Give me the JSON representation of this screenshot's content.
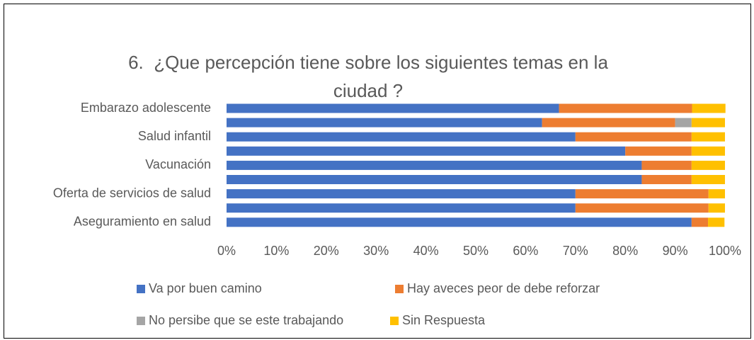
{
  "chart_data": {
    "type": "bar",
    "orientation": "horizontal",
    "stacked": "percent",
    "title": "6.  ¿Que percepción tiene sobre los siguientes temas en la ciudad ?",
    "categories": [
      "Embarazo adolescente",
      null,
      "Salud infantil",
      null,
      "Vacunación",
      null,
      "Oferta de servicios de salud",
      null,
      "Aseguramiento en salud"
    ],
    "series": [
      {
        "name": "Va por buen camino",
        "color": "#4472c4",
        "values": [
          66.7,
          63.3,
          70,
          80,
          83.3,
          83.3,
          70,
          70,
          93.3
        ]
      },
      {
        "name": "Hay aveces peor de debe reforzar",
        "color": "#ed7d31",
        "values": [
          26.7,
          26.7,
          23.3,
          13.3,
          10,
          10,
          26.7,
          26.7,
          3.3
        ]
      },
      {
        "name": "No persibe que se este trabajando",
        "color": "#a5a5a5",
        "values": [
          0,
          3.3,
          0,
          0,
          0,
          0,
          0,
          0,
          0
        ]
      },
      {
        "name": "Sin Respuesta",
        "color": "#ffc000",
        "values": [
          6.7,
          6.7,
          6.7,
          6.7,
          6.7,
          6.7,
          3.3,
          3.3,
          3.3
        ]
      }
    ],
    "xlim": [
      0,
      100
    ],
    "xticks": [
      {
        "value": 0,
        "label": "0%"
      },
      {
        "value": 10,
        "label": "10%"
      },
      {
        "value": 20,
        "label": "20%"
      },
      {
        "value": 30,
        "label": "30%"
      },
      {
        "value": 40,
        "label": "40%"
      },
      {
        "value": 50,
        "label": "50%"
      },
      {
        "value": 60,
        "label": "60%"
      },
      {
        "value": 70,
        "label": "70%"
      },
      {
        "value": 80,
        "label": "80%"
      },
      {
        "value": 90,
        "label": "90%"
      },
      {
        "value": 100,
        "label": "100%"
      }
    ],
    "grid": false,
    "legend": "bottom"
  }
}
